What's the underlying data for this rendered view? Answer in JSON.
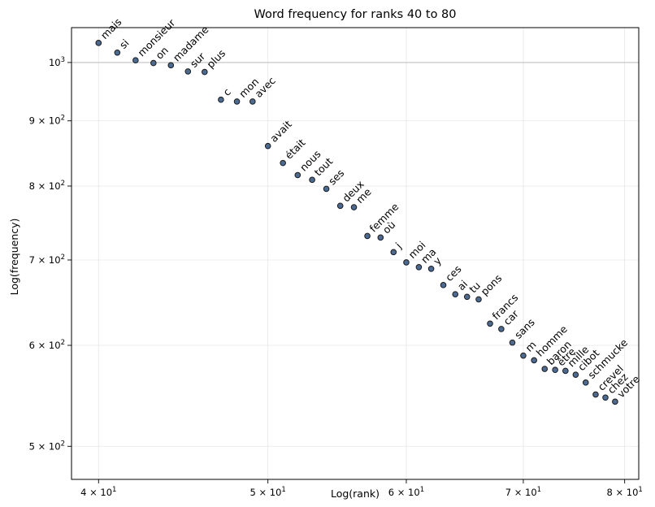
{
  "chart_data": {
    "type": "scatter",
    "title": "Word frequency for ranks 40 to 80",
    "xlabel": "Log(rank)",
    "ylabel": "Log(frequency)",
    "xscale": "log",
    "yscale": "log",
    "xlim": [
      38.6,
      81.5
    ],
    "ylim": [
      471,
      1065
    ],
    "grid": true,
    "reference_line_y": 1000,
    "point_color": "#4c6b93",
    "point_edge_color": "#1a1a1a",
    "grid_color": "#e6e6e6",
    "reference_line_color": "#c0c0c0",
    "x_ticks": [
      {
        "value": 40,
        "label": "4 × 10^1"
      },
      {
        "value": 50,
        "label": "5 × 10^1"
      },
      {
        "value": 60,
        "label": "6 × 10^1"
      },
      {
        "value": 70,
        "label": "7 × 10^1"
      },
      {
        "value": 80,
        "label": "8 × 10^1"
      }
    ],
    "y_ticks": [
      {
        "value": 500,
        "label": "5 × 10^2"
      },
      {
        "value": 600,
        "label": "6 × 10^2"
      },
      {
        "value": 700,
        "label": "7 × 10^2"
      },
      {
        "value": 800,
        "label": "8 × 10^2"
      },
      {
        "value": 900,
        "label": "9 × 10^2"
      },
      {
        "value": 1000,
        "label": "10^3"
      }
    ],
    "points": [
      {
        "word": "mais",
        "x": 40,
        "y": 1036
      },
      {
        "word": "si",
        "x": 41,
        "y": 1018
      },
      {
        "word": "monsieur",
        "x": 42,
        "y": 1004
      },
      {
        "word": "on",
        "x": 43,
        "y": 999
      },
      {
        "word": "madame",
        "x": 44,
        "y": 995
      },
      {
        "word": "sur",
        "x": 45,
        "y": 984
      },
      {
        "word": "plus",
        "x": 46,
        "y": 983
      },
      {
        "word": "c",
        "x": 47,
        "y": 935
      },
      {
        "word": "mon",
        "x": 48,
        "y": 932
      },
      {
        "word": "avec",
        "x": 49,
        "y": 932
      },
      {
        "word": "avait",
        "x": 50,
        "y": 860
      },
      {
        "word": "était",
        "x": 51,
        "y": 834
      },
      {
        "word": "nous",
        "x": 52,
        "y": 816
      },
      {
        "word": "tout",
        "x": 53,
        "y": 809
      },
      {
        "word": "ses",
        "x": 54,
        "y": 796
      },
      {
        "word": "deux",
        "x": 55,
        "y": 772
      },
      {
        "word": "me",
        "x": 56,
        "y": 770
      },
      {
        "word": "femme",
        "x": 57,
        "y": 731
      },
      {
        "word": "où",
        "x": 58,
        "y": 729
      },
      {
        "word": "j",
        "x": 59,
        "y": 710
      },
      {
        "word": "moi",
        "x": 60,
        "y": 697
      },
      {
        "word": "ma",
        "x": 61,
        "y": 691
      },
      {
        "word": "y",
        "x": 62,
        "y": 689
      },
      {
        "word": "ces",
        "x": 63,
        "y": 669
      },
      {
        "word": "ai",
        "x": 64,
        "y": 658
      },
      {
        "word": "tu",
        "x": 65,
        "y": 655
      },
      {
        "word": "pons",
        "x": 66,
        "y": 652
      },
      {
        "word": "francs",
        "x": 67,
        "y": 624
      },
      {
        "word": "car",
        "x": 68,
        "y": 618
      },
      {
        "word": "sans",
        "x": 69,
        "y": 603
      },
      {
        "word": "m",
        "x": 70,
        "y": 589
      },
      {
        "word": "homme",
        "x": 71,
        "y": 584
      },
      {
        "word": "baron",
        "x": 72,
        "y": 575
      },
      {
        "word": "être",
        "x": 73,
        "y": 574
      },
      {
        "word": "mille",
        "x": 74,
        "y": 573
      },
      {
        "word": "cibot",
        "x": 75,
        "y": 569
      },
      {
        "word": "schmucke",
        "x": 76,
        "y": 561
      },
      {
        "word": "crevel",
        "x": 77,
        "y": 549
      },
      {
        "word": "chez",
        "x": 78,
        "y": 546
      },
      {
        "word": "votre",
        "x": 79,
        "y": 542
      }
    ]
  }
}
